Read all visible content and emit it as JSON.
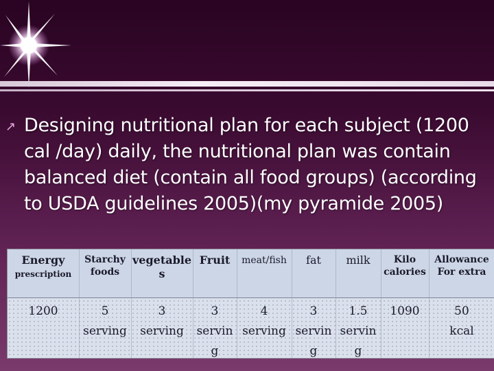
{
  "bullet": {
    "text": "Designing nutritional plan for each subject (1200 cal /day) daily, the nutritional plan was contain balanced diet (contain all food groups) (according to USDA guidelines 2005)(my pyramide 2005)"
  },
  "table": {
    "headers": {
      "energy_line1": "Energy",
      "energy_line2": "prescription",
      "starchy_line1": "Starchy",
      "starchy_line2": "foods",
      "vegetable_line1": "vegetable",
      "vegetable_line2": "s",
      "fruit": "Fruit",
      "meatfish": "meat/fish",
      "fat": "fat",
      "milk": "milk",
      "kilo_line1": "Kilo",
      "kilo_line2": "calories",
      "allowance_line1": "Allowance",
      "allowance_line2": "For extra"
    },
    "values": {
      "energy": "1200",
      "starchy_line1": "5",
      "starchy_line2": "serving",
      "vegetable_line1": "3",
      "vegetable_line2": "serving",
      "fruit_line1": "3",
      "fruit_line2": "servin",
      "fruit_line3": "g",
      "meatfish_line1": "4",
      "meatfish_line2": "serving",
      "fat_line1": "3",
      "fat_line2": "servin",
      "fat_line3": "g",
      "milk_line1": "1.5",
      "milk_line2": "servin",
      "milk_line3": "g",
      "kilo": "1090",
      "allowance_line1": "50",
      "allowance_line2": "kcal"
    }
  }
}
